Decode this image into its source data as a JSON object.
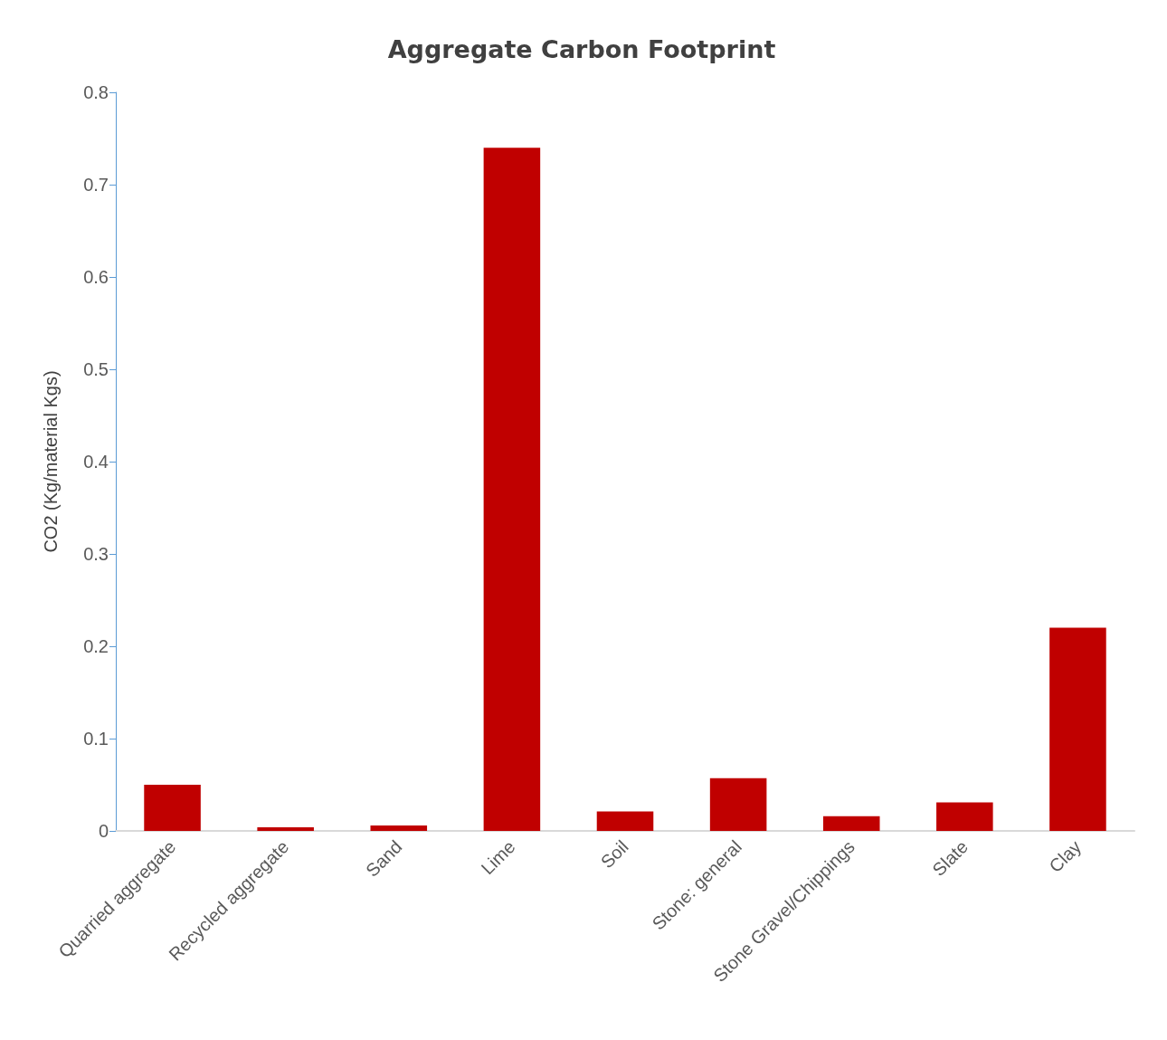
{
  "chart_data": {
    "type": "bar",
    "title": "Aggregate Carbon Footprint",
    "ylabel": "CO2 (Kg/material Kgs)",
    "categories": [
      "Quarried aggregate",
      "Recycled aggregate",
      "Sand",
      "Lime",
      "Soil",
      "Stone: general",
      "Stone Gravel/Chippings",
      "Slate",
      "Clay"
    ],
    "values": [
      0.05,
      0.004,
      0.006,
      0.74,
      0.021,
      0.057,
      0.016,
      0.031,
      0.22
    ],
    "color": "#c00000",
    "ylim": [
      0,
      0.8
    ],
    "yticks": [
      0,
      0.1,
      0.2,
      0.3,
      0.4,
      0.5,
      0.6,
      0.7,
      0.8
    ],
    "grid": false
  }
}
